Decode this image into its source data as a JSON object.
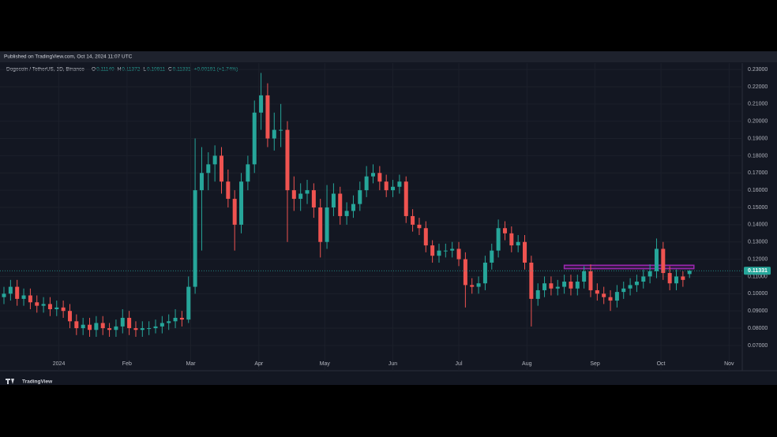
{
  "chart_data": {
    "type": "candlestick",
    "published": "Published on TradingView.com, Oct 14, 2024 11:07 UTC",
    "title": "Dogecoin / TetherUS, 1D, Binance",
    "ohlc_header": {
      "o_label": "O",
      "o": "0.11140",
      "h_label": "H",
      "h": "0.11372",
      "l_label": "L",
      "l": "0.10911",
      "c_label": "C",
      "c": "0.11331",
      "change": "+0.00191 (+1.74%)"
    },
    "brand": "TradingView",
    "up_color": "#26a69a",
    "down_color": "#ef5350",
    "grid": true,
    "xlim": [
      -25,
      311
    ],
    "xticks": [
      {
        "value": 0,
        "label": "2024"
      },
      {
        "value": 31,
        "label": "Feb"
      },
      {
        "value": 60,
        "label": "Mar"
      },
      {
        "value": 91,
        "label": "Apr"
      },
      {
        "value": 121,
        "label": "May"
      },
      {
        "value": 152,
        "label": "Jun"
      },
      {
        "value": 182,
        "label": "Jul"
      },
      {
        "value": 213,
        "label": "Aug"
      },
      {
        "value": 244,
        "label": "Sep"
      },
      {
        "value": 274,
        "label": "Oct"
      },
      {
        "value": 305,
        "label": "Nov"
      }
    ],
    "ylim": [
      0.0631,
      0.2337
    ],
    "yticks": [
      {
        "value": 0.07,
        "label": "0.07000"
      },
      {
        "value": 0.08,
        "label": "0.08000"
      },
      {
        "value": 0.09,
        "label": "0.09000"
      },
      {
        "value": 0.1,
        "label": "0.10000"
      },
      {
        "value": 0.11,
        "label": "0.11000"
      },
      {
        "value": 0.12,
        "label": "0.12000"
      },
      {
        "value": 0.13,
        "label": "0.13000"
      },
      {
        "value": 0.14,
        "label": "0.14000"
      },
      {
        "value": 0.15,
        "label": "0.15000"
      },
      {
        "value": 0.16,
        "label": "0.16000"
      },
      {
        "value": 0.17,
        "label": "0.17000"
      },
      {
        "value": 0.18,
        "label": "0.18000"
      },
      {
        "value": 0.19,
        "label": "0.19000"
      },
      {
        "value": 0.2,
        "label": "0.20000"
      },
      {
        "value": 0.21,
        "label": "0.21000"
      },
      {
        "value": 0.22,
        "label": "0.22000"
      },
      {
        "value": 0.23,
        "label": "0.23000"
      }
    ],
    "last_price": {
      "value": 0.11331,
      "label": "0.11331"
    },
    "zone": {
      "xlim": [
        230,
        289
      ],
      "ylim": [
        0.1145,
        0.1165
      ],
      "color": "#9c27b0"
    },
    "x": [
      -25,
      -22,
      -19,
      -16,
      -13,
      -10,
      -7,
      -4,
      -1,
      2,
      5,
      8,
      11,
      14,
      17,
      20,
      23,
      26,
      29,
      32,
      35,
      38,
      41,
      44,
      47,
      50,
      53,
      56,
      59,
      62,
      65,
      68,
      71,
      74,
      77,
      80,
      83,
      86,
      89,
      92,
      95,
      98,
      101,
      104,
      107,
      110,
      113,
      116,
      119,
      122,
      125,
      128,
      131,
      134,
      137,
      140,
      143,
      146,
      149,
      152,
      155,
      158,
      161,
      164,
      167,
      170,
      173,
      176,
      179,
      182,
      185,
      188,
      191,
      194,
      197,
      200,
      203,
      206,
      209,
      212,
      215,
      218,
      221,
      224,
      227,
      230,
      233,
      236,
      239,
      242,
      245,
      248,
      251,
      254,
      257,
      260,
      263,
      266,
      269,
      272,
      275,
      278,
      281,
      284,
      287
    ],
    "candles": [
      [
        0.098,
        0.104,
        0.094,
        0.1
      ],
      [
        0.1,
        0.108,
        0.096,
        0.104
      ],
      [
        0.104,
        0.108,
        0.093,
        0.097
      ],
      [
        0.097,
        0.103,
        0.093,
        0.099
      ],
      [
        0.099,
        0.103,
        0.091,
        0.095
      ],
      [
        0.095,
        0.099,
        0.089,
        0.093
      ],
      [
        0.093,
        0.098,
        0.089,
        0.094
      ],
      [
        0.094,
        0.098,
        0.087,
        0.091
      ],
      [
        0.091,
        0.096,
        0.087,
        0.092
      ],
      [
        0.092,
        0.096,
        0.086,
        0.09
      ],
      [
        0.09,
        0.094,
        0.08,
        0.084
      ],
      [
        0.084,
        0.088,
        0.076,
        0.08
      ],
      [
        0.08,
        0.086,
        0.076,
        0.082
      ],
      [
        0.082,
        0.086,
        0.075,
        0.079
      ],
      [
        0.079,
        0.087,
        0.075,
        0.083
      ],
      [
        0.083,
        0.087,
        0.076,
        0.08
      ],
      [
        0.08,
        0.083,
        0.075,
        0.079
      ],
      [
        0.079,
        0.085,
        0.075,
        0.081
      ],
      [
        0.081,
        0.091,
        0.077,
        0.086
      ],
      [
        0.086,
        0.09,
        0.076,
        0.08
      ],
      [
        0.08,
        0.084,
        0.075,
        0.079
      ],
      [
        0.079,
        0.084,
        0.075,
        0.08
      ],
      [
        0.08,
        0.084,
        0.076,
        0.08
      ],
      [
        0.08,
        0.085,
        0.077,
        0.081
      ],
      [
        0.081,
        0.087,
        0.077,
        0.083
      ],
      [
        0.083,
        0.088,
        0.079,
        0.084
      ],
      [
        0.084,
        0.091,
        0.08,
        0.086
      ],
      [
        0.086,
        0.09,
        0.081,
        0.085
      ],
      [
        0.085,
        0.11,
        0.083,
        0.104
      ],
      [
        0.104,
        0.19,
        0.1,
        0.16
      ],
      [
        0.16,
        0.185,
        0.125,
        0.17
      ],
      [
        0.17,
        0.182,
        0.16,
        0.175
      ],
      [
        0.175,
        0.186,
        0.165,
        0.18
      ],
      [
        0.18,
        0.185,
        0.158,
        0.165
      ],
      [
        0.165,
        0.172,
        0.15,
        0.155
      ],
      [
        0.155,
        0.16,
        0.125,
        0.14
      ],
      [
        0.14,
        0.17,
        0.135,
        0.165
      ],
      [
        0.165,
        0.18,
        0.16,
        0.175
      ],
      [
        0.175,
        0.212,
        0.17,
        0.205
      ],
      [
        0.205,
        0.228,
        0.195,
        0.215
      ],
      [
        0.215,
        0.222,
        0.185,
        0.19
      ],
      [
        0.19,
        0.205,
        0.183,
        0.195
      ],
      [
        0.195,
        0.21,
        0.185,
        0.195
      ],
      [
        0.195,
        0.2,
        0.13,
        0.16
      ],
      [
        0.16,
        0.168,
        0.148,
        0.155
      ],
      [
        0.155,
        0.164,
        0.148,
        0.158
      ],
      [
        0.158,
        0.166,
        0.152,
        0.16
      ],
      [
        0.16,
        0.164,
        0.144,
        0.15
      ],
      [
        0.15,
        0.155,
        0.121,
        0.13
      ],
      [
        0.13,
        0.163,
        0.126,
        0.15
      ],
      [
        0.15,
        0.164,
        0.145,
        0.158
      ],
      [
        0.158,
        0.162,
        0.14,
        0.145
      ],
      [
        0.145,
        0.153,
        0.14,
        0.148
      ],
      [
        0.148,
        0.157,
        0.144,
        0.152
      ],
      [
        0.152,
        0.165,
        0.148,
        0.16
      ],
      [
        0.16,
        0.174,
        0.156,
        0.168
      ],
      [
        0.168,
        0.175,
        0.164,
        0.17
      ],
      [
        0.17,
        0.174,
        0.16,
        0.165
      ],
      [
        0.165,
        0.169,
        0.156,
        0.16
      ],
      [
        0.16,
        0.166,
        0.156,
        0.162
      ],
      [
        0.162,
        0.169,
        0.158,
        0.165
      ],
      [
        0.165,
        0.168,
        0.141,
        0.145
      ],
      [
        0.145,
        0.149,
        0.136,
        0.14
      ],
      [
        0.14,
        0.144,
        0.134,
        0.138
      ],
      [
        0.138,
        0.142,
        0.124,
        0.128
      ],
      [
        0.128,
        0.131,
        0.118,
        0.122
      ],
      [
        0.122,
        0.129,
        0.118,
        0.125
      ],
      [
        0.125,
        0.129,
        0.121,
        0.125
      ],
      [
        0.125,
        0.13,
        0.121,
        0.126
      ],
      [
        0.126,
        0.13,
        0.116,
        0.12
      ],
      [
        0.12,
        0.124,
        0.092,
        0.105
      ],
      [
        0.105,
        0.109,
        0.1,
        0.104
      ],
      [
        0.104,
        0.11,
        0.1,
        0.106
      ],
      [
        0.106,
        0.122,
        0.102,
        0.118
      ],
      [
        0.118,
        0.129,
        0.114,
        0.125
      ],
      [
        0.125,
        0.143,
        0.121,
        0.138
      ],
      [
        0.138,
        0.142,
        0.131,
        0.135
      ],
      [
        0.135,
        0.139,
        0.124,
        0.128
      ],
      [
        0.128,
        0.134,
        0.124,
        0.13
      ],
      [
        0.13,
        0.134,
        0.114,
        0.118
      ],
      [
        0.118,
        0.122,
        0.081,
        0.097
      ],
      [
        0.097,
        0.106,
        0.093,
        0.102
      ],
      [
        0.102,
        0.11,
        0.098,
        0.106
      ],
      [
        0.106,
        0.11,
        0.099,
        0.103
      ],
      [
        0.103,
        0.108,
        0.099,
        0.104
      ],
      [
        0.104,
        0.111,
        0.1,
        0.107
      ],
      [
        0.107,
        0.111,
        0.099,
        0.103
      ],
      [
        0.103,
        0.111,
        0.099,
        0.107
      ],
      [
        0.107,
        0.116,
        0.103,
        0.113
      ],
      [
        0.113,
        0.117,
        0.098,
        0.102
      ],
      [
        0.102,
        0.106,
        0.096,
        0.1
      ],
      [
        0.1,
        0.104,
        0.094,
        0.098
      ],
      [
        0.098,
        0.102,
        0.09,
        0.096
      ],
      [
        0.096,
        0.105,
        0.092,
        0.101
      ],
      [
        0.101,
        0.107,
        0.097,
        0.103
      ],
      [
        0.103,
        0.109,
        0.099,
        0.105
      ],
      [
        0.105,
        0.111,
        0.101,
        0.107
      ],
      [
        0.107,
        0.114,
        0.103,
        0.11
      ],
      [
        0.11,
        0.117,
        0.106,
        0.113
      ],
      [
        0.113,
        0.132,
        0.109,
        0.126
      ],
      [
        0.126,
        0.13,
        0.108,
        0.112
      ],
      [
        0.112,
        0.116,
        0.102,
        0.106
      ],
      [
        0.106,
        0.114,
        0.102,
        0.11
      ],
      [
        0.11,
        0.113,
        0.104,
        0.108
      ],
      [
        0.1114,
        0.11372,
        0.10911,
        0.11331
      ]
    ]
  }
}
